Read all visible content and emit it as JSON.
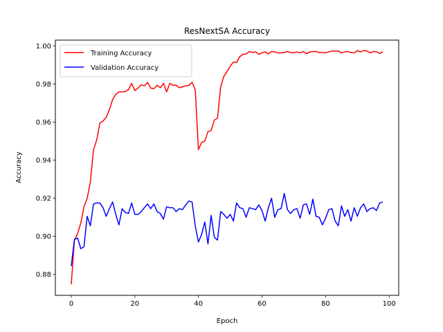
{
  "chart_data": {
    "type": "line",
    "title": "ResNextSA Accuracy",
    "xlabel": "Epoch",
    "ylabel": "Accuracy",
    "xlim": [
      -5,
      103
    ],
    "ylim": [
      0.869,
      1.003
    ],
    "xticks": [
      0,
      20,
      40,
      60,
      80,
      100
    ],
    "yticks": [
      0.88,
      0.9,
      0.92,
      0.94,
      0.96,
      0.98,
      1.0
    ],
    "ytick_labels": [
      "0.88",
      "0.90",
      "0.92",
      "0.94",
      "0.96",
      "0.98",
      "1.00"
    ],
    "grid": false,
    "legend": "top-left",
    "series": [
      {
        "name": "Training Accuracy",
        "color": "#ff0000",
        "values": [
          0.8748,
          0.898,
          0.9015,
          0.907,
          0.9155,
          0.92,
          0.9285,
          0.9455,
          0.9505,
          0.9595,
          0.9605,
          0.9625,
          0.9665,
          0.9718,
          0.9745,
          0.9758,
          0.9758,
          0.976,
          0.977,
          0.9803,
          0.9765,
          0.9778,
          0.9795,
          0.979,
          0.9808,
          0.9778,
          0.9775,
          0.9793,
          0.978,
          0.9803,
          0.9758,
          0.9803,
          0.9793,
          0.9793,
          0.978,
          0.9785,
          0.979,
          0.9793,
          0.9808,
          0.977,
          0.9455,
          0.9493,
          0.95,
          0.955,
          0.9555,
          0.961,
          0.962,
          0.9785,
          0.984,
          0.9865,
          0.9893,
          0.9915,
          0.9913,
          0.9943,
          0.9955,
          0.9958,
          0.997,
          0.9965,
          0.9968,
          0.9955,
          0.9963,
          0.9968,
          0.9958,
          0.997,
          0.9968,
          0.9963,
          0.9963,
          0.9965,
          0.997,
          0.9965,
          0.9963,
          0.9968,
          0.9963,
          0.997,
          0.9958,
          0.9968,
          0.997,
          0.997,
          0.9965,
          0.9965,
          0.9963,
          0.9968,
          0.9973,
          0.9973,
          0.9973,
          0.9963,
          0.9968,
          0.997,
          0.9965,
          0.9963,
          0.9975,
          0.9968,
          0.9975,
          0.9973,
          0.9963,
          0.997,
          0.997,
          0.996,
          0.9968
        ]
      },
      {
        "name": "Validation Accuracy",
        "color": "#0000ff",
        "values": [
          0.8843,
          0.8985,
          0.899,
          0.8935,
          0.8945,
          0.9105,
          0.9055,
          0.917,
          0.9175,
          0.9175,
          0.915,
          0.9105,
          0.9145,
          0.918,
          0.9115,
          0.906,
          0.9145,
          0.9125,
          0.912,
          0.9175,
          0.9115,
          0.9115,
          0.913,
          0.915,
          0.917,
          0.9145,
          0.917,
          0.913,
          0.912,
          0.909,
          0.9155,
          0.915,
          0.915,
          0.913,
          0.9145,
          0.914,
          0.9165,
          0.9185,
          0.918,
          0.9055,
          0.897,
          0.901,
          0.9075,
          0.896,
          0.911,
          0.8995,
          0.898,
          0.913,
          0.9115,
          0.9095,
          0.9115,
          0.908,
          0.9175,
          0.915,
          0.9145,
          0.91,
          0.915,
          0.9145,
          0.914,
          0.9165,
          0.9135,
          0.908,
          0.915,
          0.92,
          0.91,
          0.914,
          0.9145,
          0.9225,
          0.914,
          0.912,
          0.914,
          0.9145,
          0.9095,
          0.9165,
          0.917,
          0.9115,
          0.9195,
          0.9105,
          0.91,
          0.906,
          0.9095,
          0.914,
          0.9145,
          0.908,
          0.9055,
          0.916,
          0.9105,
          0.914,
          0.908,
          0.915,
          0.9105,
          0.915,
          0.917,
          0.913,
          0.9145,
          0.915,
          0.9135,
          0.9175,
          0.918
        ]
      }
    ]
  }
}
